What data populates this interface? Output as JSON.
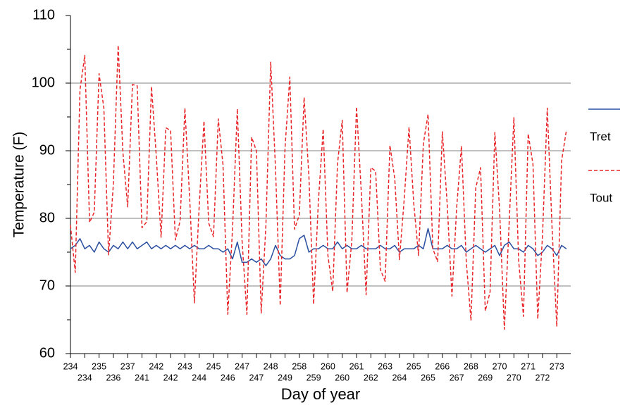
{
  "chart_data": {
    "type": "line",
    "y_label": "Temperature (F)",
    "x_label": "Day of year",
    "categories": [
      "234",
      null,
      null,
      "234",
      null,
      null,
      "235",
      null,
      null,
      "236",
      null,
      null,
      "237",
      null,
      null,
      "241",
      null,
      null,
      "242",
      null,
      null,
      "242",
      null,
      null,
      "243",
      null,
      null,
      "244",
      null,
      null,
      "245",
      null,
      null,
      "246",
      null,
      null,
      "247",
      null,
      null,
      "247",
      null,
      null,
      "248",
      null,
      null,
      "249",
      null,
      null,
      "258",
      null,
      null,
      "259",
      null,
      null,
      "260",
      null,
      null,
      "260",
      null,
      null,
      "261",
      null,
      null,
      "262",
      null,
      null,
      "263",
      null,
      null,
      "264",
      null,
      null,
      "265",
      null,
      null,
      "265",
      null,
      null,
      "266",
      null,
      null,
      "267",
      null,
      null,
      "268",
      null,
      null,
      "269",
      null,
      null,
      "270",
      null,
      null,
      "270",
      null,
      null,
      "271",
      null,
      null,
      "272",
      null,
      null,
      "273",
      null,
      null
    ],
    "series": [
      {
        "name": "Tret",
        "color": "#2a4fa0",
        "dash": false,
        "values": [
          75.5,
          76,
          77,
          75.5,
          76,
          75,
          76.5,
          75.5,
          75,
          76,
          75.5,
          76.5,
          75.5,
          76.5,
          75.5,
          76,
          76.5,
          75.5,
          76,
          75.5,
          76,
          75.5,
          76,
          75.5,
          76,
          75.5,
          76,
          75.5,
          75.5,
          76,
          75.5,
          75.5,
          75,
          75.5,
          74,
          76.5,
          73.5,
          73.5,
          74,
          73.5,
          74,
          73,
          74,
          76,
          74.5,
          74,
          74,
          74.5,
          77,
          77.5,
          75,
          75.5,
          75.5,
          76,
          75.5,
          75.5,
          76.5,
          75.5,
          76,
          75.5,
          75.5,
          76,
          75.5,
          75.5,
          75.5,
          76,
          75.5,
          75.5,
          76,
          75,
          75.5,
          75.5,
          75.5,
          76,
          75.5,
          78.5,
          75.5,
          75.5,
          75.5,
          76,
          75.5,
          75.5,
          76,
          75,
          75.5,
          76,
          75.5,
          75,
          75.5,
          76,
          74.5,
          76,
          76.5,
          75.5,
          75.5,
          75,
          76,
          75.5,
          74.5,
          75,
          76,
          75.5,
          74.5,
          76,
          75.5
        ]
      },
      {
        "name": "Tout",
        "color": "#e8262a",
        "dash": true,
        "values": [
          79,
          72,
          99,
          104.1,
          79.4,
          80.9,
          101.4,
          96.3,
          74.6,
          85.1,
          105.6,
          89.8,
          81.7,
          99.8,
          99.6,
          78.6,
          79.5,
          99.5,
          89.2,
          77.2,
          93.4,
          93,
          76.8,
          79.6,
          96.3,
          82.9,
          67.5,
          81.8,
          94.4,
          79.3,
          77.3,
          94.7,
          87.9,
          65.8,
          78.6,
          96.2,
          76.6,
          65.8,
          92,
          90,
          66,
          79,
          103.1,
          87.4,
          67.1,
          90.4,
          100.9,
          78.4,
          80.5,
          97.9,
          86.2,
          67.3,
          82.6,
          93.2,
          74.5,
          69.2,
          88.1,
          94.5,
          69,
          76.7,
          96.5,
          83.7,
          68.7,
          87.5,
          87,
          72.4,
          70.7,
          90.8,
          85.9,
          73.9,
          82.9,
          93.5,
          82.2,
          74.5,
          91,
          95.4,
          75.5,
          73.6,
          92.8,
          82.2,
          68.5,
          81.6,
          90.7,
          73.7,
          64.9,
          84.5,
          87.5,
          66.3,
          69.1,
          92.7,
          81.3,
          63.6,
          79.3,
          94.9,
          73.7,
          65.5,
          92.5,
          88,
          65.1,
          77.4,
          96.3,
          78.6,
          64,
          88.5,
          93
        ]
      }
    ],
    "ylim": [
      60,
      110
    ],
    "yticks": [
      60,
      70,
      80,
      90,
      100,
      110
    ],
    "yminorticks": [
      65,
      75,
      85,
      95,
      105
    ],
    "grid": true,
    "legend": "right"
  }
}
